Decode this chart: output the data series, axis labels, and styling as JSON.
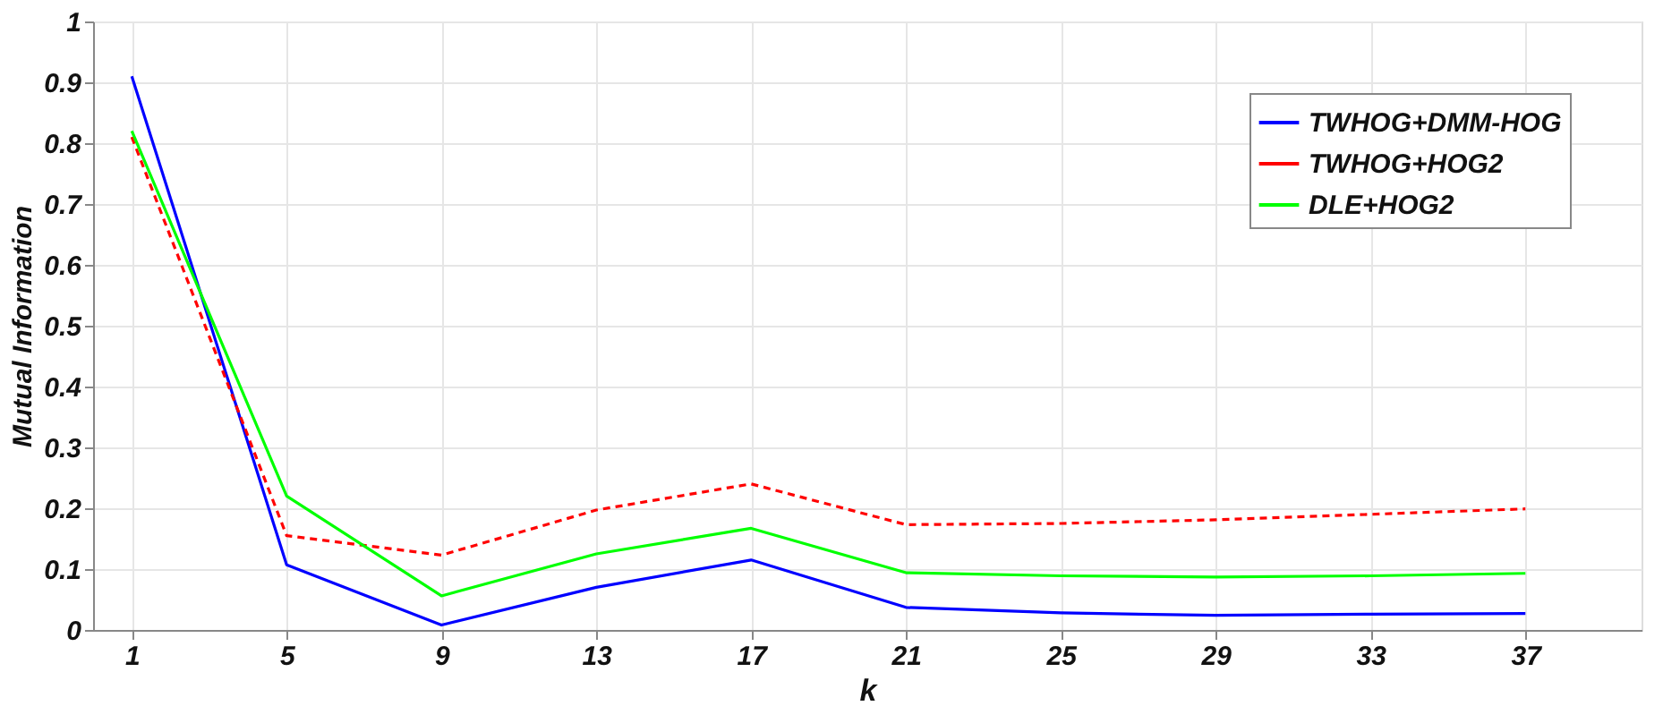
{
  "chart_data": {
    "type": "line",
    "xlabel": "k",
    "ylabel": "Mutual Information",
    "x": [
      1,
      5,
      9,
      13,
      17,
      21,
      25,
      29,
      33,
      37
    ],
    "series": [
      {
        "name": "TWHOG+DMM-HOG",
        "color": "#0000ff",
        "line_style": "solid",
        "values": [
          0.91,
          0.107,
          0.008,
          0.07,
          0.115,
          0.037,
          0.028,
          0.024,
          0.026,
          0.027
        ]
      },
      {
        "name": "TWHOG+HOG2",
        "color": "#ff0000",
        "line_style": "dashed",
        "values": [
          0.81,
          0.155,
          0.123,
          0.197,
          0.24,
          0.173,
          0.175,
          0.181,
          0.19,
          0.199
        ]
      },
      {
        "name": "DLE+HOG2",
        "color": "#00ff00",
        "line_style": "solid",
        "values": [
          0.82,
          0.22,
          0.056,
          0.125,
          0.167,
          0.094,
          0.089,
          0.087,
          0.089,
          0.093
        ]
      }
    ],
    "xlim": [
      0,
      40
    ],
    "xticks": [
      1,
      5,
      9,
      13,
      17,
      21,
      25,
      29,
      33,
      37
    ],
    "ylim": [
      0,
      1
    ],
    "yticks": [
      0,
      0.1,
      0.2,
      0.3,
      0.4,
      0.5,
      0.6,
      0.7,
      0.8,
      0.9,
      1
    ],
    "grid": true,
    "legend": "top right",
    "marker": "none"
  }
}
